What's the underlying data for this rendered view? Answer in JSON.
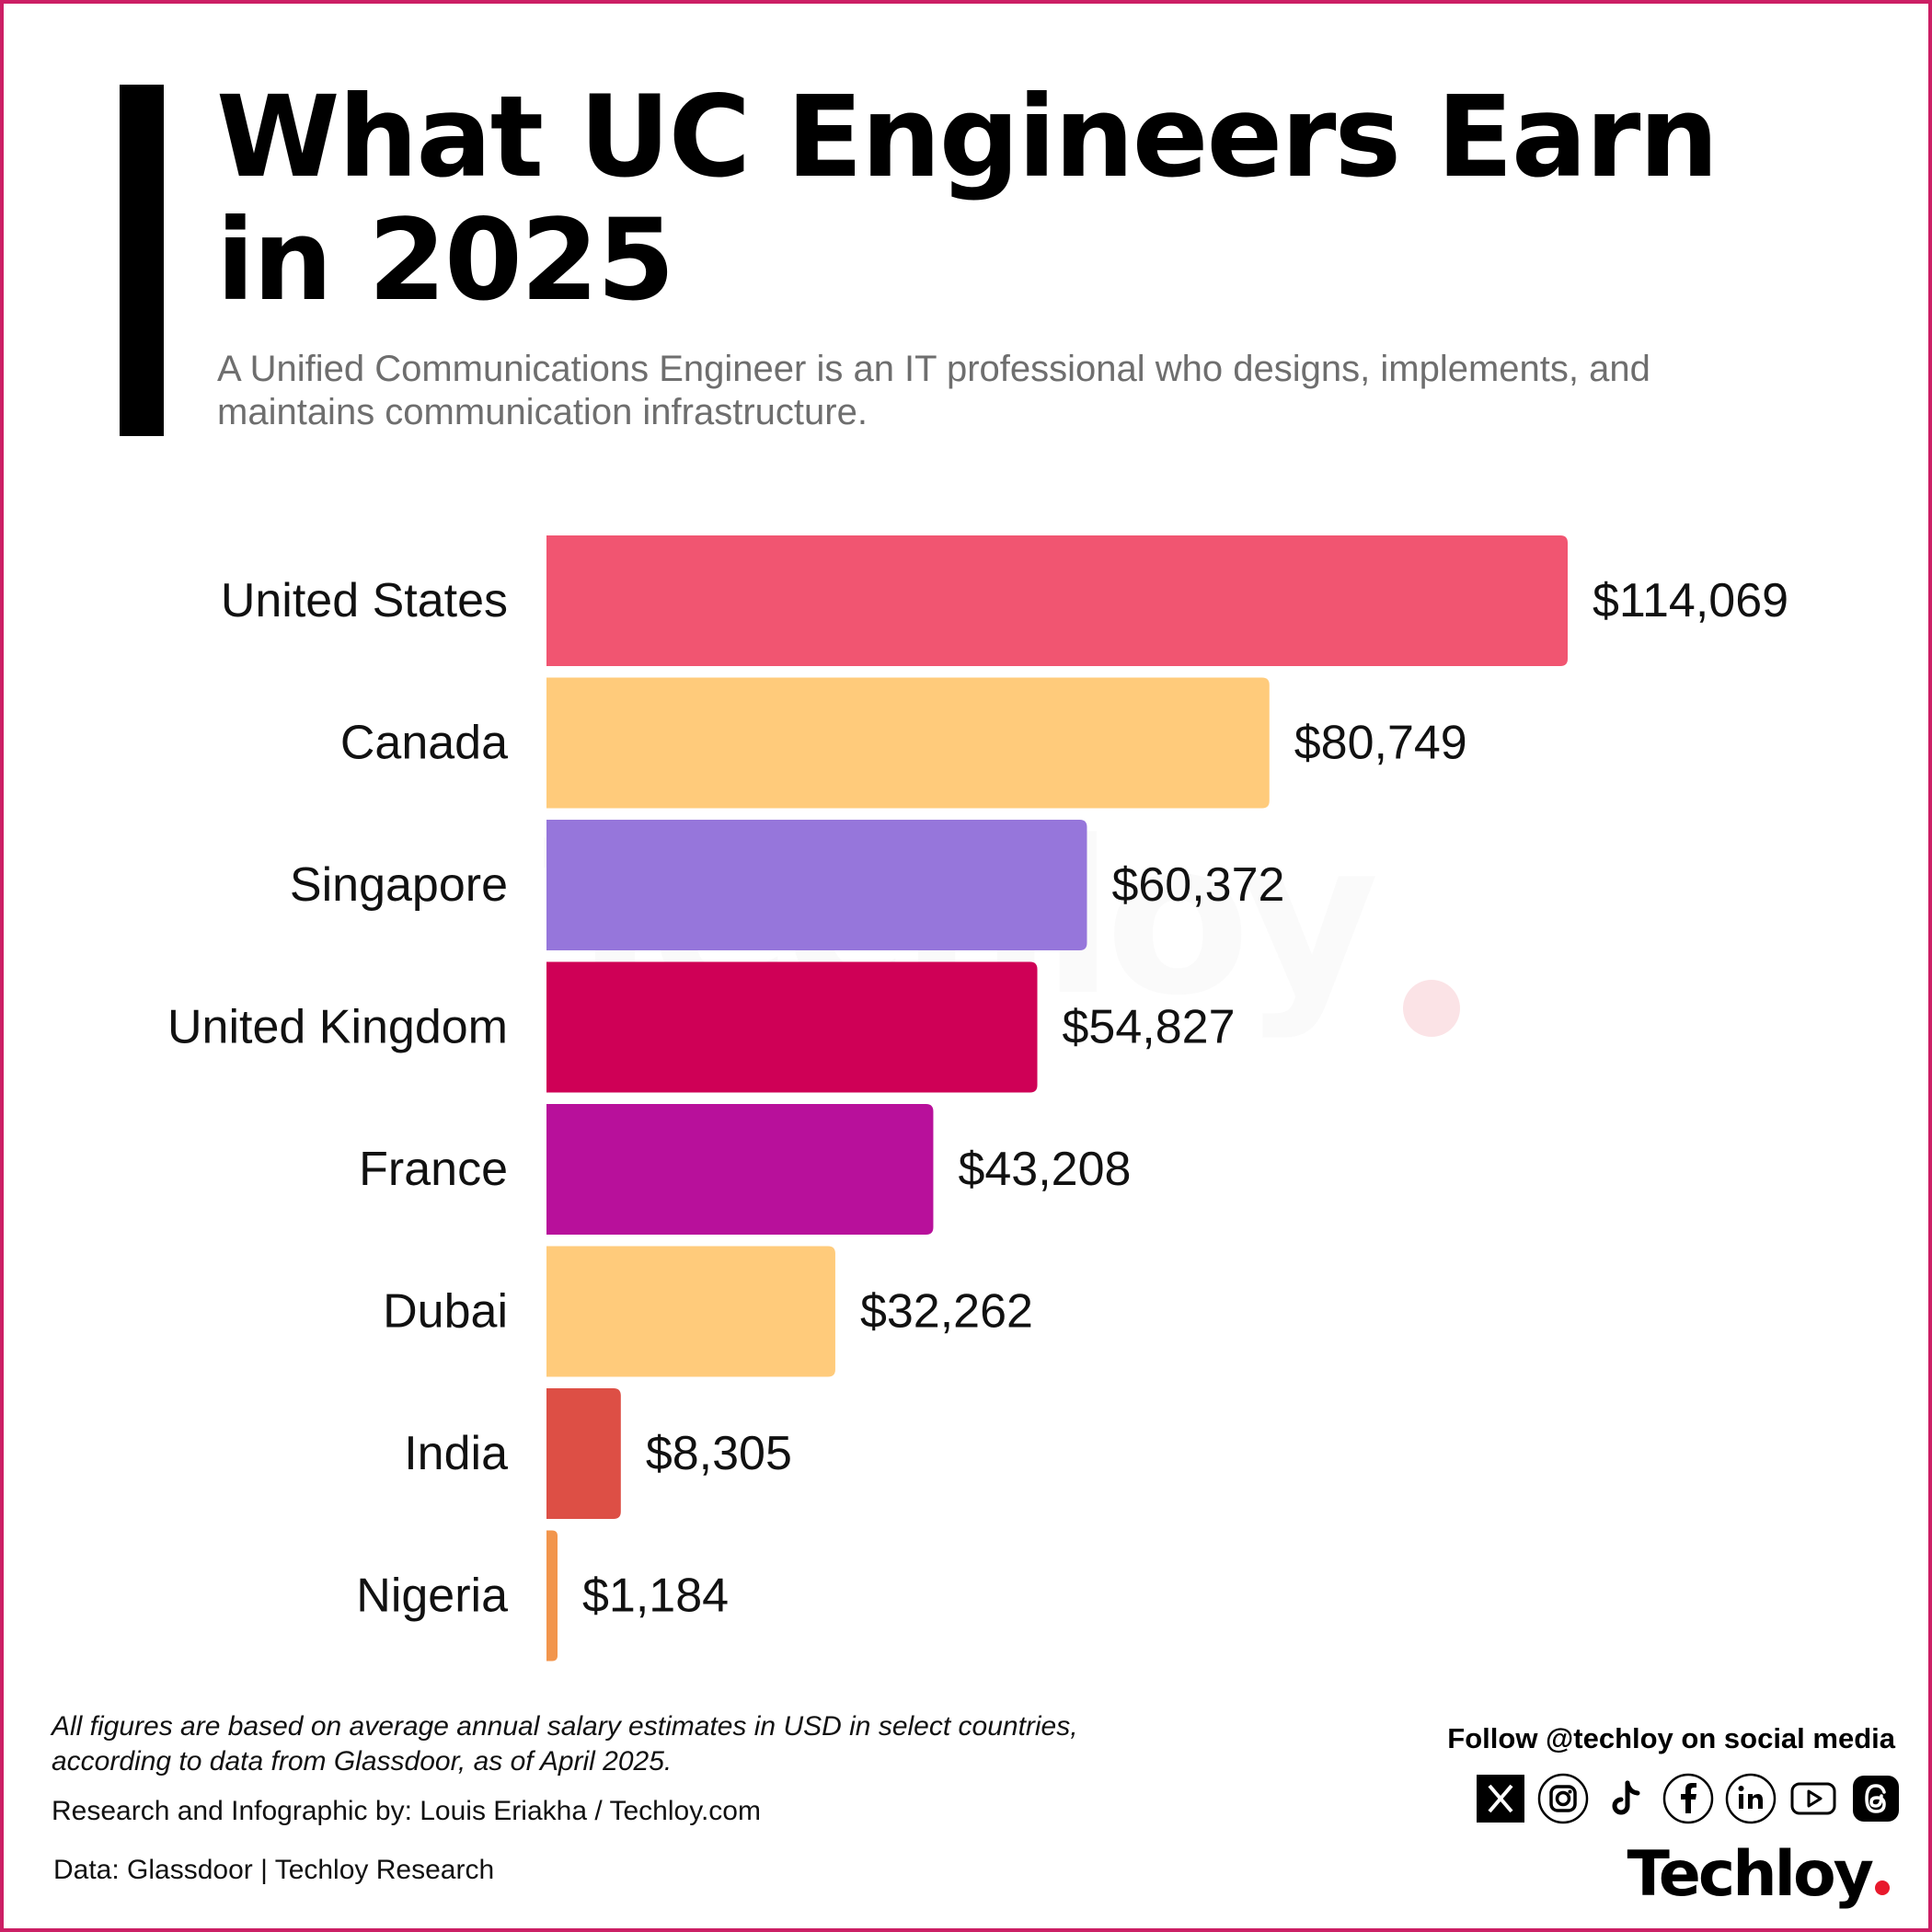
{
  "header": {
    "title": "What UC Engineers Earn in 2025",
    "subtitle": "A Unified Communications Engineer is an IT professional who designs, implements, and maintains communication infrastructure."
  },
  "watermark": "Techloy",
  "chart_data": {
    "type": "bar",
    "orientation": "horizontal",
    "title": "What UC Engineers Earn in 2025",
    "xlabel": "",
    "ylabel": "",
    "categories": [
      "United States",
      "Canada",
      "Singapore",
      "United Kingdom",
      "France",
      "Dubai",
      "India",
      "Nigeria"
    ],
    "values": [
      114069,
      80749,
      60372,
      54827,
      43208,
      32262,
      8305,
      1184
    ],
    "value_labels": [
      "$114,069",
      "$80,749",
      "$60,372",
      "$54,827",
      "$43,208",
      "$32,262",
      "$8,305",
      "$1,184"
    ],
    "colors": [
      "#f15571",
      "#ffcb7b",
      "#9676db",
      "#cf0056",
      "#b8109b",
      "#ffcb7b",
      "#dd4f45",
      "#f2954c"
    ],
    "xlim": [
      0,
      114069
    ],
    "unit": "USD",
    "grid": false
  },
  "footer": {
    "note": "All figures are based on average annual salary estimates in USD in select countries, according to data from Glassdoor, as of April 2025.",
    "credit": "Research and Infographic by: Louis Eriakha / Techloy.com",
    "source": "Data: Glassdoor | Techloy Research",
    "follow": "Follow @techloy on social media",
    "socials": [
      "x-icon",
      "instagram-icon",
      "tiktok-icon",
      "facebook-icon",
      "linkedin-icon",
      "youtube-icon",
      "threads-icon"
    ],
    "brand": "Techloy"
  }
}
